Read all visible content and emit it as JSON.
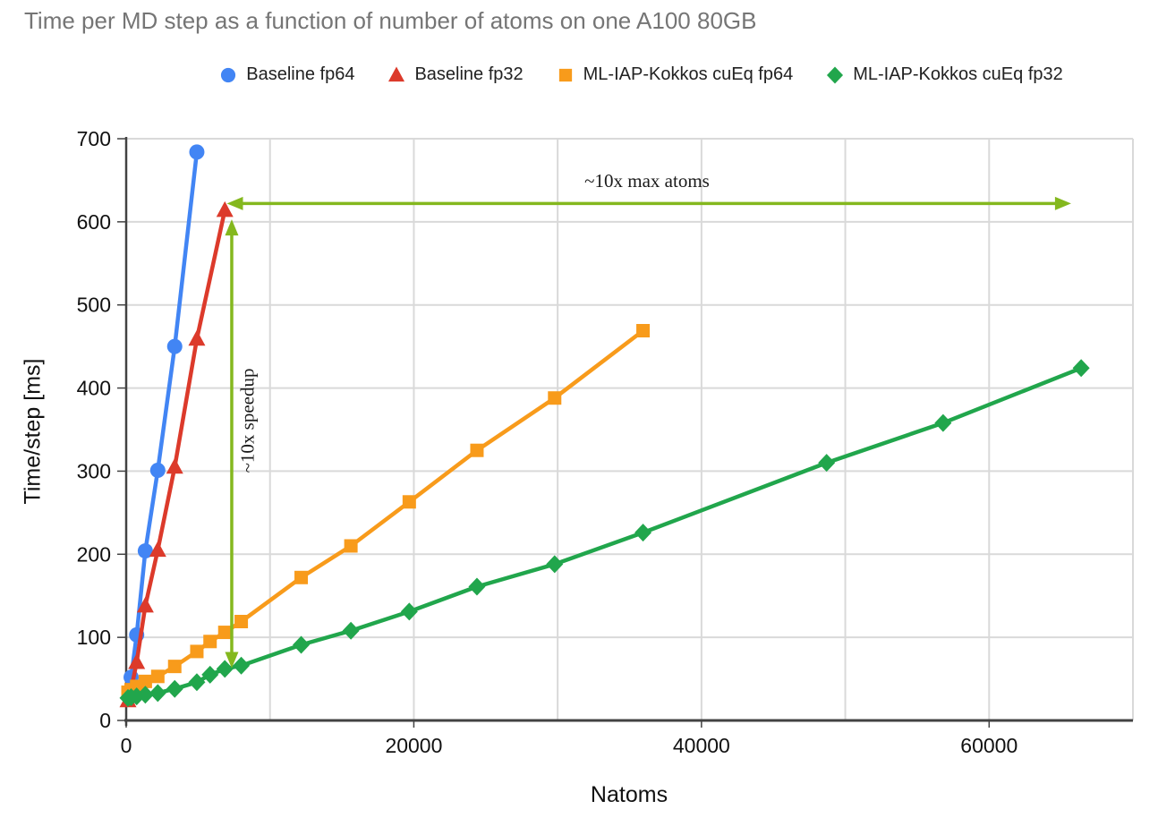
{
  "chart_data": {
    "type": "line",
    "title": "Time per MD step as a function of number of atoms on one A100 80GB",
    "xlabel": "Natoms",
    "ylabel": "Time/step [ms]",
    "xlim": [
      0,
      70000
    ],
    "ylim": [
      0,
      700
    ],
    "grid": true,
    "legend_position": "top",
    "grid_color": "#d9d9d9",
    "axis_color": "#424242",
    "annotation_color": "#84b81e",
    "xticks": {
      "values": [
        0,
        20000,
        40000,
        60000
      ],
      "labels": [
        "0",
        "20000",
        "40000",
        "60000"
      ]
    },
    "yticks": {
      "values": [
        0,
        100,
        200,
        300,
        400,
        500,
        600,
        700
      ],
      "labels": [
        "0",
        "100",
        "200",
        "300",
        "400",
        "500",
        "600",
        "700"
      ]
    },
    "x_gridlines": [
      10000,
      20000,
      30000,
      40000,
      50000,
      60000,
      70000
    ],
    "series": [
      {
        "name": "Baseline fp64",
        "color": "#4285f4",
        "marker": "circle",
        "points": [
          [
            343,
            52
          ],
          [
            729,
            103
          ],
          [
            1331,
            204
          ],
          [
            2197,
            301
          ],
          [
            3375,
            450
          ],
          [
            4913,
            684
          ]
        ]
      },
      {
        "name": "Baseline fp32",
        "color": "#dc3a2b",
        "marker": "triangle",
        "points": [
          [
            125,
            24
          ],
          [
            343,
            37
          ],
          [
            729,
            70
          ],
          [
            1331,
            138
          ],
          [
            2197,
            205
          ],
          [
            3375,
            305
          ],
          [
            4913,
            459
          ],
          [
            6859,
            614
          ]
        ]
      },
      {
        "name": "ML-IAP-Kokkos cuEq fp64",
        "color": "#f89b1b",
        "marker": "square",
        "points": [
          [
            125,
            34
          ],
          [
            343,
            37
          ],
          [
            729,
            41
          ],
          [
            1331,
            47
          ],
          [
            2197,
            53
          ],
          [
            3375,
            65
          ],
          [
            4913,
            83
          ],
          [
            5832,
            95
          ],
          [
            6859,
            106
          ],
          [
            8000,
            119
          ],
          [
            12167,
            172
          ],
          [
            15625,
            210
          ],
          [
            19683,
            263
          ],
          [
            24389,
            325
          ],
          [
            29791,
            388
          ],
          [
            35937,
            469
          ]
        ]
      },
      {
        "name": "ML-IAP-Kokkos cuEq fp32",
        "color": "#21a64c",
        "marker": "diamond",
        "points": [
          [
            125,
            27
          ],
          [
            343,
            28
          ],
          [
            729,
            29
          ],
          [
            1331,
            31
          ],
          [
            2197,
            33
          ],
          [
            3375,
            38
          ],
          [
            4913,
            46
          ],
          [
            5832,
            55
          ],
          [
            6859,
            62
          ],
          [
            8000,
            66
          ],
          [
            12167,
            91
          ],
          [
            15625,
            108
          ],
          [
            19683,
            131
          ],
          [
            24389,
            161
          ],
          [
            29791,
            188
          ],
          [
            35937,
            226
          ],
          [
            48700,
            310
          ],
          [
            56800,
            358
          ],
          [
            66400,
            424
          ]
        ]
      }
    ],
    "annotations": {
      "max_atoms": {
        "text": "~10x max atoms",
        "arrow": {
          "type": "horizontal",
          "y": 622,
          "x1": 7000,
          "x2": 65700
        }
      },
      "speedup": {
        "text": "~10x speedup",
        "arrow": {
          "type": "vertical",
          "x": 7340,
          "y1": 63,
          "y2": 603
        }
      }
    }
  }
}
